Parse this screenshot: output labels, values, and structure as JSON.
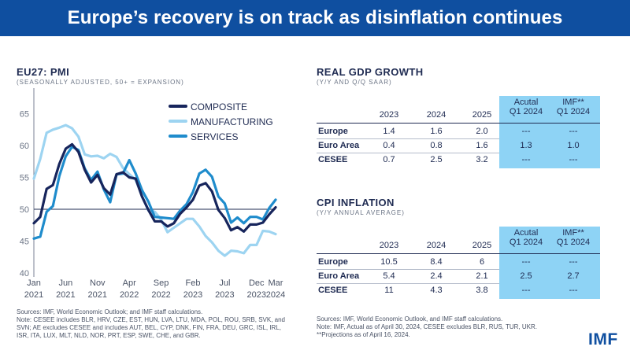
{
  "header": {
    "title": "Europe’s recovery is on track as disinflation continues"
  },
  "chart_data": {
    "type": "line",
    "title": "EU27: PMI",
    "subtitle": "(SEASONALLY ADJUSTED, 50+ = EXPANSION)",
    "ylim": [
      40,
      66
    ],
    "yticks": [
      40,
      45,
      50,
      55,
      60,
      65
    ],
    "reference_line": 50,
    "x_ticks": [
      {
        "month": 0,
        "line1": "Jan",
        "line2": "2021"
      },
      {
        "month": 5,
        "line1": "Jun",
        "line2": "2021"
      },
      {
        "month": 10,
        "line1": "Nov",
        "line2": "2021"
      },
      {
        "month": 15,
        "line1": "Apr",
        "line2": "2022"
      },
      {
        "month": 20,
        "line1": "Sep",
        "line2": "2022"
      },
      {
        "month": 25,
        "line1": "Feb",
        "line2": "2023"
      },
      {
        "month": 30,
        "line1": "Jul",
        "line2": "2023"
      },
      {
        "month": 35,
        "line1": "Dec",
        "line2": "2023"
      },
      {
        "month": 38,
        "line1": "Mar",
        "line2": "2024"
      }
    ],
    "legend_position": "top-right",
    "series": [
      {
        "name": "COMPOSITE",
        "color": "#17255c",
        "values": [
          47.8,
          48.8,
          53.2,
          53.8,
          57.1,
          59.5,
          60.2,
          59.0,
          56.2,
          54.2,
          55.4,
          53.3,
          52.3,
          55.5,
          55.8,
          55.0,
          54.8,
          52.0,
          49.9,
          48.1,
          48.1,
          47.3,
          47.8,
          49.3,
          50.3,
          51.5,
          53.7,
          54.1,
          52.8,
          49.9,
          48.6,
          46.7,
          47.2,
          46.5,
          47.6,
          47.6,
          47.9,
          49.2,
          50.3
        ]
      },
      {
        "name": "MANUFACTURING",
        "color": "#9dd4f1",
        "values": [
          54.8,
          57.9,
          62.0,
          62.5,
          62.8,
          63.2,
          62.7,
          61.4,
          58.6,
          58.3,
          58.4,
          58.0,
          58.7,
          58.2,
          56.5,
          55.5,
          54.6,
          52.1,
          49.8,
          49.6,
          48.4,
          46.4,
          47.1,
          47.8,
          48.5,
          48.5,
          47.3,
          45.8,
          44.8,
          43.5,
          42.7,
          43.5,
          43.4,
          43.1,
          44.4,
          44.4,
          46.6,
          46.5,
          46.1
        ]
      },
      {
        "name": "SERVICES",
        "color": "#1f8ccc",
        "values": [
          45.4,
          45.7,
          49.6,
          50.5,
          55.2,
          58.3,
          59.8,
          59.3,
          56.4,
          54.6,
          55.9,
          53.1,
          51.1,
          55.5,
          55.6,
          57.7,
          55.6,
          53.0,
          51.2,
          48.8,
          48.7,
          48.6,
          48.5,
          49.8,
          50.8,
          52.7,
          55.6,
          56.2,
          55.1,
          52.0,
          50.9,
          47.9,
          48.7,
          47.8,
          48.8,
          48.8,
          48.4,
          50.2,
          51.5
        ]
      }
    ]
  },
  "gdp": {
    "title": "REAL GDP GROWTH",
    "subtitle": "(Y/Y AND Q/Q SAAR)",
    "columns": [
      "2023",
      "2024",
      "2025"
    ],
    "q_headers": [
      {
        "line1": "Acutal",
        "line2": "Q1 2024"
      },
      {
        "line1": "IMF**",
        "line2": "Q1 2024"
      }
    ],
    "rows": [
      {
        "label": "Europe",
        "values": [
          "1.4",
          "1.6",
          "2.0",
          "---",
          "---"
        ]
      },
      {
        "label": "Euro Area",
        "values": [
          "0.4",
          "0.8",
          "1.6",
          "1.3",
          "1.0"
        ]
      },
      {
        "label": "CESEE",
        "values": [
          "0.7",
          "2.5",
          "3.2",
          "---",
          "---"
        ]
      }
    ]
  },
  "cpi": {
    "title": "CPI INFLATION",
    "subtitle": "(Y/Y ANNUAL AVERAGE)",
    "columns": [
      "2023",
      "2024",
      "2025"
    ],
    "q_headers": [
      {
        "line1": "Acutal",
        "line2": "Q1 2024"
      },
      {
        "line1": "IMF**",
        "line2": "Q1 2024"
      }
    ],
    "rows": [
      {
        "label": "Europe",
        "values": [
          "10.5",
          "8.4",
          "6",
          "---",
          "---"
        ]
      },
      {
        "label": "Euro Area",
        "values": [
          "5.4",
          "2.4",
          "2.1",
          "2.5",
          "2.7"
        ]
      },
      {
        "label": "CESEE",
        "values": [
          "11",
          "4.3",
          "3.8",
          "---",
          "---"
        ]
      }
    ]
  },
  "notes_left": [
    "Sources: IMF, World Economic Outlook; and IMF staff calculations.",
    "Note: CESEE includes BLR, HRV, CZE, EST, HUN, LVA, LTU, MDA, POL, ROU, SRB, SVK, and",
    "SVN; AE excludes CESEE and includes AUT, BEL, CYP, DNK, FIN, FRA, DEU, GRC, ISL, IRL,",
    "ISR, ITA, LUX, MLT, NLD, NOR, PRT, ESP, SWE, CHE, and GBR."
  ],
  "notes_right": [
    "Sources: IMF, World Economic Outlook, and IMF staff calculations.",
    "Note: IMF, Actual as of April 30, 2024, CESEE excludes BLR, RUS, TUR, UKR.",
    "**Projections as of April 16, 2024."
  ],
  "logo": "IMF",
  "colors": {
    "banner": "#0f4fa0",
    "highlight": "#8ed3f5",
    "text": "#1f2b52"
  }
}
